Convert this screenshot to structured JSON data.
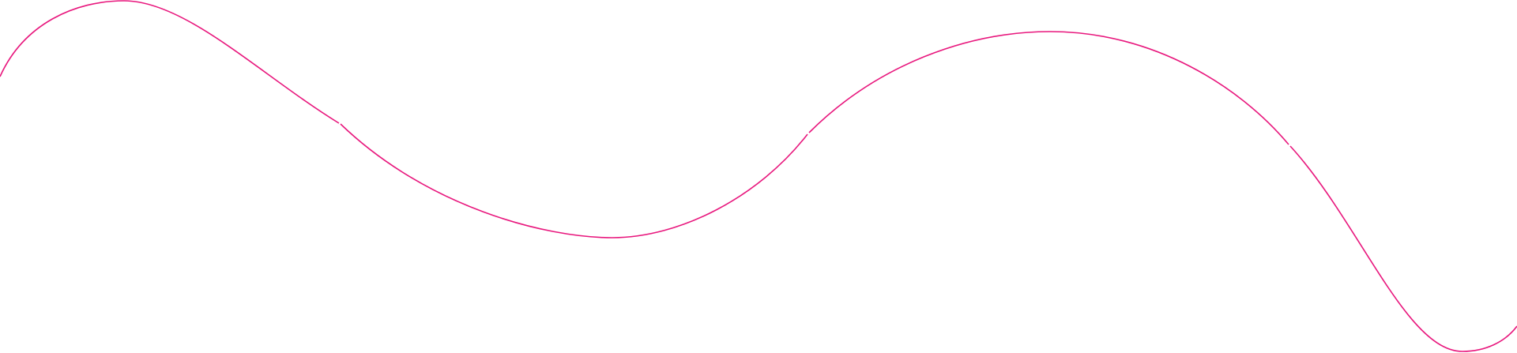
{
  "decoration": {
    "type": "wavy-line",
    "stroke_color": "#e8177d",
    "background_color": "#ffffff",
    "segment_count": 4
  }
}
